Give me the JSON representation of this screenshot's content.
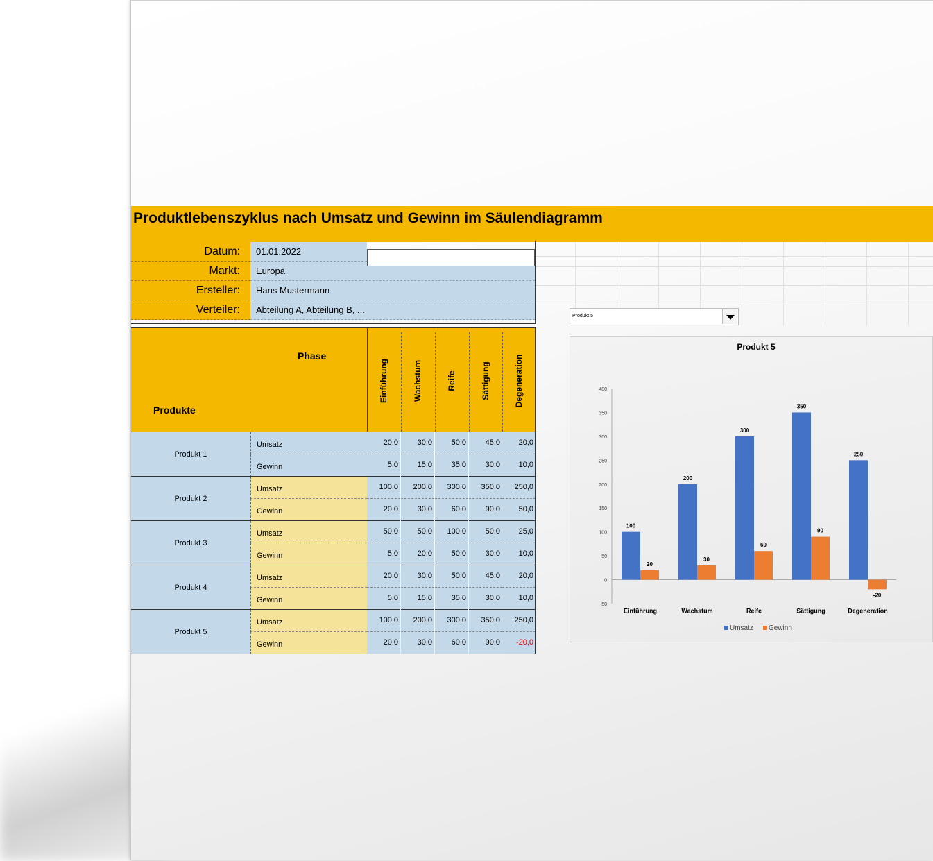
{
  "title": "Produktlebenszyklus nach Umsatz und Gewinn im Säulendiagramm",
  "info": [
    {
      "label": "Datum:",
      "value": "01.01.2022"
    },
    {
      "label": "Markt:",
      "value": "Europa"
    },
    {
      "label": "Ersteller:",
      "value": "Hans Mustermann"
    },
    {
      "label": "Verteiler:",
      "value": "Abteilung A, Abteilung B, ..."
    }
  ],
  "table": {
    "phase_label": "Phase",
    "products_label": "Produkte",
    "phases": [
      "Einführung",
      "Wachstum",
      "Reife",
      "Sättigung",
      "Degeneration"
    ],
    "type_labels": [
      "Umsatz",
      "Gewinn"
    ],
    "products": [
      {
        "name": "Produkt 1",
        "umsatz": [
          "20,0",
          "30,0",
          "50,0",
          "45,0",
          "20,0"
        ],
        "gewinn": [
          "5,0",
          "15,0",
          "35,0",
          "30,0",
          "10,0"
        ]
      },
      {
        "name": "Produkt 2",
        "umsatz": [
          "100,0",
          "200,0",
          "300,0",
          "350,0",
          "250,0"
        ],
        "gewinn": [
          "20,0",
          "30,0",
          "60,0",
          "90,0",
          "50,0"
        ]
      },
      {
        "name": "Produkt 3",
        "umsatz": [
          "50,0",
          "50,0",
          "100,0",
          "50,0",
          "25,0"
        ],
        "gewinn": [
          "5,0",
          "20,0",
          "50,0",
          "30,0",
          "10,0"
        ]
      },
      {
        "name": "Produkt 4",
        "umsatz": [
          "20,0",
          "30,0",
          "50,0",
          "45,0",
          "20,0"
        ],
        "gewinn": [
          "5,0",
          "15,0",
          "35,0",
          "30,0",
          "10,0"
        ]
      },
      {
        "name": "Produkt 5",
        "umsatz": [
          "100,0",
          "200,0",
          "300,0",
          "350,0",
          "250,0"
        ],
        "gewinn": [
          "20,0",
          "30,0",
          "60,0",
          "90,0",
          "-20,0"
        ]
      }
    ]
  },
  "dropdown": {
    "selected": "Produkt 5",
    "icon": "triangle-down-icon"
  },
  "colors": {
    "accent": "#f4b800",
    "cell_blue": "#c3d9ea",
    "cell_cream": "#f6e39a",
    "umsatz": "#4472c4",
    "gewinn": "#ed7d31",
    "negative": "#e00000"
  },
  "chart_data": {
    "type": "bar",
    "title": "Produkt 5",
    "categories": [
      "Einführung",
      "Wachstum",
      "Reife",
      "Sättigung",
      "Degeneration"
    ],
    "series": [
      {
        "name": "Umsatz",
        "values": [
          100,
          200,
          300,
          350,
          250
        ],
        "color": "#4472c4"
      },
      {
        "name": "Gewinn",
        "values": [
          20,
          30,
          60,
          90,
          -20
        ],
        "color": "#ed7d31"
      }
    ],
    "ylim": [
      -50,
      400
    ],
    "yticks": [
      -50,
      0,
      50,
      100,
      150,
      200,
      250,
      300,
      350,
      400
    ],
    "grid": false,
    "legend": "bottom"
  }
}
